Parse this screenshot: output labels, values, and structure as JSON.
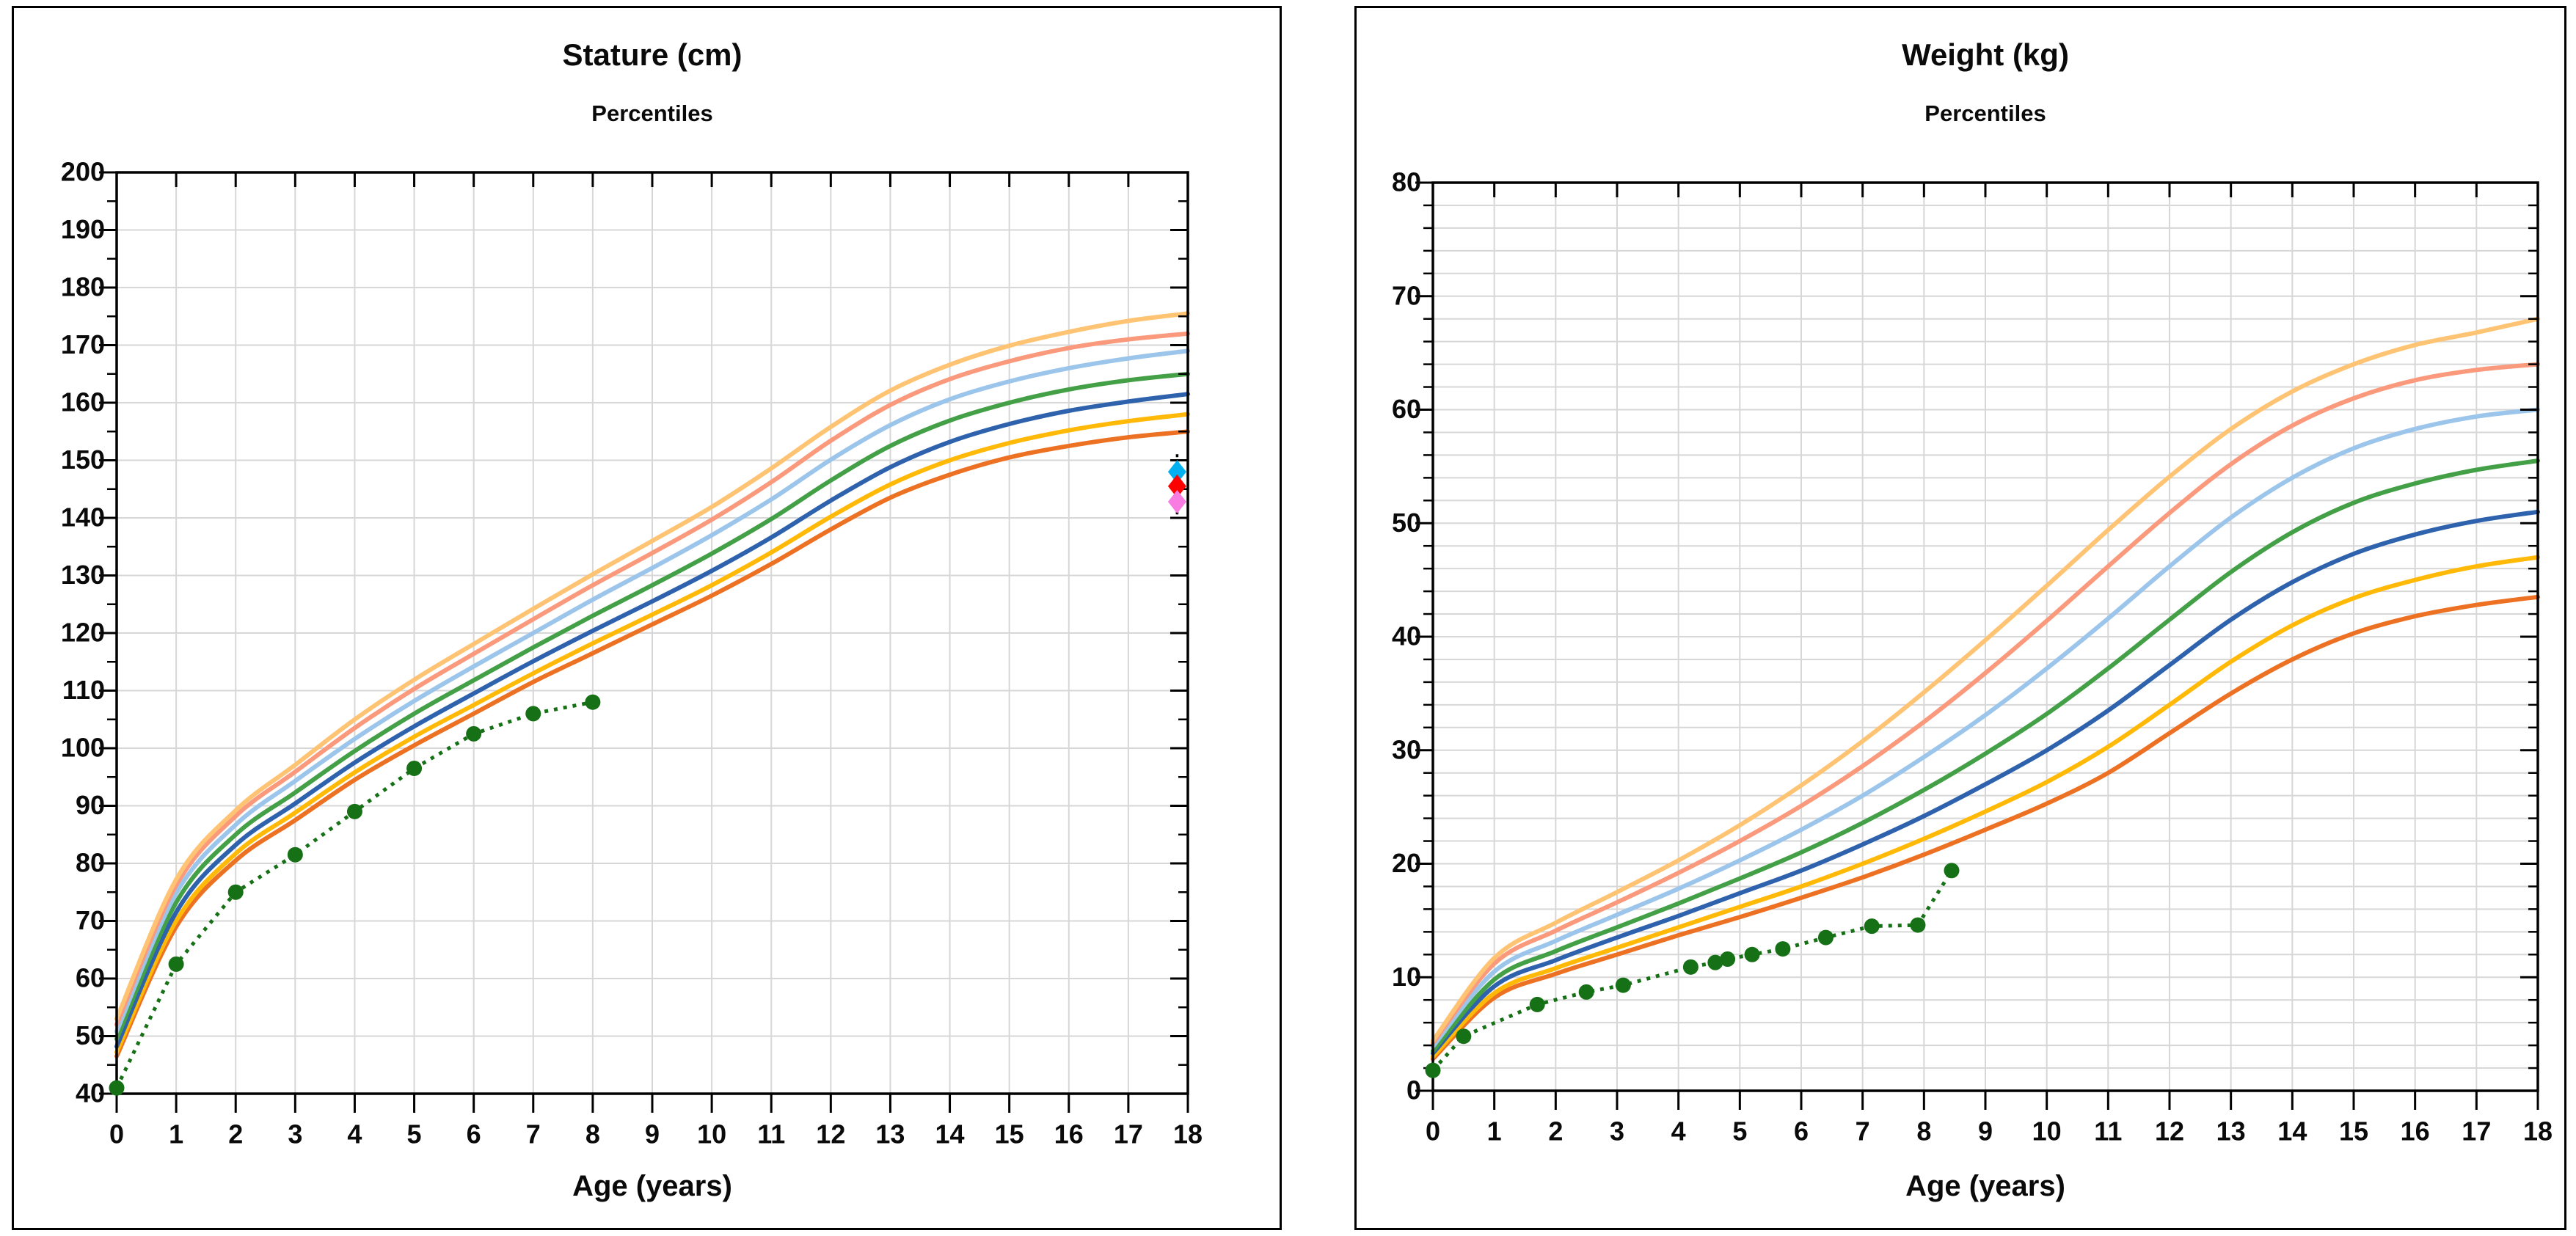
{
  "chart_data": [
    {
      "id": "stature",
      "type": "line",
      "title": "Stature (cm)",
      "subtitle": "Percentiles",
      "xlabel": "Age (years)",
      "x_range": [
        0,
        18
      ],
      "y_range": [
        40,
        200
      ],
      "x_ticks": [
        0,
        1,
        2,
        3,
        4,
        5,
        6,
        7,
        8,
        9,
        10,
        11,
        12,
        13,
        14,
        15,
        16,
        17,
        18
      ],
      "y_ticks": [
        40,
        50,
        60,
        70,
        80,
        90,
        100,
        110,
        120,
        130,
        140,
        150,
        160,
        170,
        180,
        190,
        200
      ],
      "y_minor_step": 5,
      "grid": {
        "x_step": 1,
        "y_step": 10,
        "color": "#d7d7d7"
      },
      "percentile_ages": [
        0,
        1,
        2,
        3,
        4,
        5,
        6,
        7,
        8,
        9,
        10,
        11,
        12,
        13,
        14,
        15,
        16,
        17,
        18
      ],
      "percentiles": [
        {
          "name": "p5",
          "color": "#ED7123",
          "values": [
            46.5,
            69.0,
            80.5,
            87.5,
            94.5,
            100.5,
            106.0,
            111.5,
            116.5,
            121.5,
            126.5,
            132.0,
            138.0,
            143.5,
            147.5,
            150.5,
            152.5,
            154.0,
            155.0
          ]
        },
        {
          "name": "p10",
          "color": "#FFB906",
          "values": [
            47.2,
            70.0,
            81.7,
            88.8,
            95.8,
            102.0,
            107.5,
            113.0,
            118.2,
            123.2,
            128.3,
            134.0,
            140.2,
            145.8,
            150.0,
            153.0,
            155.2,
            156.8,
            158.0
          ]
        },
        {
          "name": "p25",
          "color": "#2E62AD",
          "values": [
            48.2,
            71.5,
            83.2,
            90.4,
            97.5,
            103.8,
            109.5,
            115.1,
            120.4,
            125.5,
            130.8,
            136.6,
            143.0,
            148.8,
            153.2,
            156.3,
            158.6,
            160.2,
            161.5
          ]
        },
        {
          "name": "p50",
          "color": "#43A047",
          "values": [
            49.5,
            73.2,
            85.0,
            92.3,
            99.5,
            106.0,
            111.8,
            117.5,
            123.0,
            128.3,
            133.8,
            139.8,
            146.5,
            152.5,
            156.9,
            160.0,
            162.3,
            163.9,
            165.0
          ]
        },
        {
          "name": "p75",
          "color": "#9CC5EB",
          "values": [
            50.8,
            74.8,
            86.7,
            94.3,
            101.6,
            108.2,
            114.2,
            120.0,
            125.8,
            131.3,
            137.0,
            143.2,
            150.1,
            156.1,
            160.6,
            163.7,
            166.0,
            167.7,
            169.0
          ]
        },
        {
          "name": "p90",
          "color": "#FA997B",
          "values": [
            52.0,
            76.2,
            88.2,
            95.9,
            103.5,
            110.3,
            116.4,
            122.4,
            128.3,
            133.9,
            139.7,
            146.2,
            153.4,
            159.6,
            164.1,
            167.2,
            169.5,
            171.0,
            172.0
          ]
        },
        {
          "name": "p95",
          "color": "#FFC473",
          "values": [
            53.0,
            77.2,
            89.2,
            97.1,
            105.0,
            111.9,
            118.1,
            124.2,
            130.2,
            136.0,
            141.9,
            148.6,
            155.8,
            162.1,
            166.6,
            169.9,
            172.3,
            174.2,
            175.5
          ]
        }
      ],
      "patient": {
        "name": "patient-stature",
        "color": "#167016",
        "points": [
          [
            0,
            41
          ],
          [
            1,
            62.5
          ],
          [
            2,
            75
          ],
          [
            3,
            81.5
          ],
          [
            4,
            89
          ],
          [
            5,
            96.5
          ],
          [
            6,
            102.5
          ],
          [
            7,
            106
          ],
          [
            8,
            108
          ]
        ]
      },
      "markers": {
        "x": 17.82,
        "connector_color": "#000000",
        "items": [
          {
            "name": "target-height-upper",
            "shape": "diamond",
            "color": "#00B0F0",
            "value": 148.0
          },
          {
            "name": "target-height-mid",
            "shape": "diamond",
            "color": "#FE0000",
            "value": 145.5
          },
          {
            "name": "target-height-lower",
            "shape": "diamond",
            "color": "#F97CE3",
            "value": 142.8
          }
        ]
      }
    },
    {
      "id": "weight",
      "type": "line",
      "title": "Weight (kg)",
      "subtitle": "Percentiles",
      "xlabel": "Age (years)",
      "x_range": [
        0,
        18
      ],
      "y_range": [
        0,
        80
      ],
      "x_ticks": [
        0,
        1,
        2,
        3,
        4,
        5,
        6,
        7,
        8,
        9,
        10,
        11,
        12,
        13,
        14,
        15,
        16,
        17,
        18
      ],
      "y_ticks": [
        0,
        10,
        20,
        30,
        40,
        50,
        60,
        70,
        80
      ],
      "y_minor_step": 2,
      "grid": {
        "x_step": 1,
        "y_step": 2,
        "color": "#d7d7d7"
      },
      "percentile_ages": [
        0,
        1,
        2,
        3,
        4,
        5,
        6,
        7,
        8,
        9,
        10,
        11,
        12,
        13,
        14,
        15,
        16,
        17,
        18
      ],
      "percentiles": [
        {
          "name": "p5",
          "color": "#ED7123",
          "values": [
            2.8,
            8.2,
            10.3,
            12.0,
            13.7,
            15.3,
            17.0,
            18.8,
            20.8,
            23.0,
            25.3,
            28.0,
            31.5,
            35.0,
            38.0,
            40.3,
            41.8,
            42.8,
            43.5
          ]
        },
        {
          "name": "p10",
          "color": "#FFB906",
          "values": [
            3.0,
            8.6,
            10.8,
            12.6,
            14.4,
            16.2,
            18.0,
            20.0,
            22.2,
            24.6,
            27.2,
            30.3,
            34.0,
            37.8,
            41.0,
            43.4,
            45.0,
            46.2,
            47.0
          ]
        },
        {
          "name": "p25",
          "color": "#2E62AD",
          "values": [
            3.3,
            9.2,
            11.5,
            13.5,
            15.4,
            17.4,
            19.4,
            21.7,
            24.2,
            27.0,
            30.0,
            33.5,
            37.5,
            41.5,
            44.8,
            47.3,
            49.0,
            50.2,
            51.0
          ]
        },
        {
          "name": "p50",
          "color": "#43A047",
          "values": [
            3.5,
            9.8,
            12.3,
            14.4,
            16.5,
            18.7,
            21.0,
            23.6,
            26.5,
            29.7,
            33.2,
            37.2,
            41.5,
            45.7,
            49.2,
            51.8,
            53.5,
            54.7,
            55.5
          ]
        },
        {
          "name": "p75",
          "color": "#9CC5EB",
          "values": [
            3.9,
            10.5,
            13.2,
            15.5,
            17.8,
            20.3,
            23.0,
            26.0,
            29.4,
            33.1,
            37.2,
            41.6,
            46.2,
            50.5,
            54.0,
            56.6,
            58.3,
            59.4,
            60.0
          ]
        },
        {
          "name": "p90",
          "color": "#FA997B",
          "values": [
            4.2,
            11.2,
            14.1,
            16.6,
            19.2,
            22.0,
            25.1,
            28.6,
            32.5,
            36.8,
            41.4,
            46.2,
            50.9,
            55.2,
            58.6,
            61.0,
            62.6,
            63.5,
            64.0
          ]
        },
        {
          "name": "p95",
          "color": "#FFC473",
          "values": [
            4.4,
            11.7,
            14.8,
            17.5,
            20.3,
            23.4,
            26.9,
            30.8,
            35.1,
            39.7,
            44.5,
            49.4,
            54.1,
            58.3,
            61.6,
            64.0,
            65.7,
            66.8,
            68.0
          ]
        }
      ],
      "patient": {
        "name": "patient-weight",
        "color": "#167016",
        "points": [
          [
            0,
            1.8
          ],
          [
            0.5,
            4.8
          ],
          [
            1.7,
            7.6
          ],
          [
            2.5,
            8.7
          ],
          [
            3.1,
            9.3
          ],
          [
            4.2,
            10.9
          ],
          [
            4.6,
            11.3
          ],
          [
            4.8,
            11.6
          ],
          [
            5.2,
            12.0
          ],
          [
            5.7,
            12.5
          ],
          [
            6.4,
            13.5
          ],
          [
            7.15,
            14.5
          ],
          [
            7.9,
            14.6
          ],
          [
            8.45,
            19.4
          ]
        ]
      },
      "markers": null
    }
  ],
  "style_colors": {
    "axis": "#000000",
    "grid": "#d7d7d7",
    "text": "#0a0a0a",
    "patient_series": "#167016"
  }
}
